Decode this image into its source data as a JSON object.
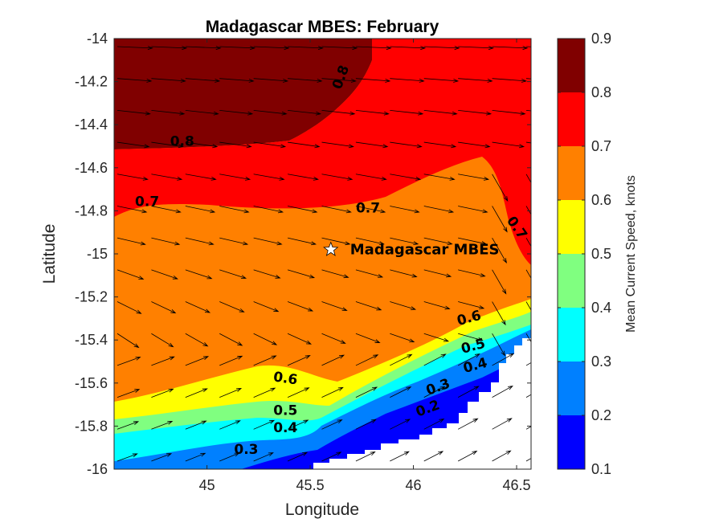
{
  "chart_data": {
    "type": "filled-contour-with-vectors",
    "title": "Madagascar MBES: February",
    "xlabel": "Longitude",
    "ylabel": "Latitude",
    "xlim": [
      44.55,
      46.57
    ],
    "ylim": [
      -16,
      -14
    ],
    "x_ticks": [
      "45",
      "45.5",
      "46",
      "46.5"
    ],
    "x_tick_values": [
      45,
      45.5,
      46,
      46.5
    ],
    "y_ticks": [
      "-14",
      "-14.2",
      "-14.4",
      "-14.6",
      "-14.8",
      "-15",
      "-15.2",
      "-15.4",
      "-15.6",
      "-15.8",
      "-16"
    ],
    "y_tick_values": [
      -14,
      -14.2,
      -14.4,
      -14.6,
      -14.8,
      -15,
      -15.2,
      -15.4,
      -15.6,
      -15.8,
      -16
    ],
    "colorbar": {
      "label": "Mean Current Speed, knots",
      "ticks": [
        "0.1",
        "0.2",
        "0.3",
        "0.4",
        "0.5",
        "0.6",
        "0.7",
        "0.8",
        "0.9"
      ],
      "levels": [
        0.1,
        0.2,
        0.3,
        0.4,
        0.5,
        0.6,
        0.7,
        0.8,
        0.9
      ],
      "colors": [
        "#0000ff",
        "#0080ff",
        "#00ffff",
        "#80ff80",
        "#ffff00",
        "#ff8000",
        "#ff0000",
        "#800000"
      ]
    },
    "contour_labels": [
      {
        "text": "0.8",
        "lon": 45.65,
        "lat": -14.18,
        "angle": -70
      },
      {
        "text": "0.8",
        "lon": 44.88,
        "lat": -14.48,
        "angle": 0
      },
      {
        "text": "0.7",
        "lon": 44.71,
        "lat": -14.76,
        "angle": 0
      },
      {
        "text": "0.7",
        "lon": 45.78,
        "lat": -14.79,
        "angle": 0
      },
      {
        "text": "0.7",
        "lon": 46.5,
        "lat": -14.88,
        "angle": 55
      },
      {
        "text": "0.6",
        "lon": 46.27,
        "lat": -15.3,
        "angle": -15
      },
      {
        "text": "0.5",
        "lon": 46.29,
        "lat": -15.43,
        "angle": -15
      },
      {
        "text": "0.4",
        "lon": 46.3,
        "lat": -15.52,
        "angle": -15
      },
      {
        "text": "0.6",
        "lon": 45.38,
        "lat": -15.58,
        "angle": 8
      },
      {
        "text": "0.5",
        "lon": 45.38,
        "lat": -15.73,
        "angle": 0
      },
      {
        "text": "0.4",
        "lon": 45.38,
        "lat": -15.81,
        "angle": 0
      },
      {
        "text": "0.3",
        "lon": 46.12,
        "lat": -15.62,
        "angle": -20
      },
      {
        "text": "0.2",
        "lon": 46.07,
        "lat": -15.72,
        "angle": -20
      },
      {
        "text": "0.3",
        "lon": 45.19,
        "lat": -15.91,
        "angle": 0
      }
    ],
    "site": {
      "name": "Madagascar MBES",
      "lon": 45.6,
      "lat": -14.98,
      "color": "#ffffff",
      "marker": "star"
    },
    "land_color": "#ffffff",
    "arrow_color": "#000000"
  }
}
